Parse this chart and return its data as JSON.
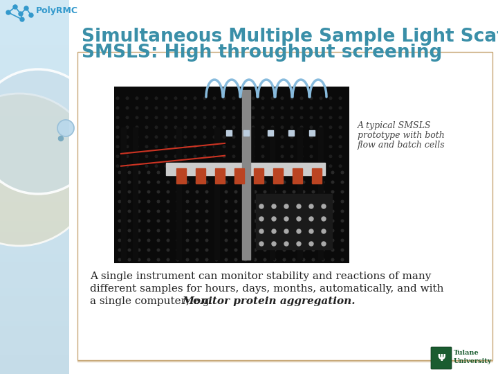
{
  "bg_color": "#ffffff",
  "left_panel_color_top": "#c5dce8",
  "left_panel_color_bottom": "#d8eaf2",
  "title_line1": "Simultaneous Multiple Sample Light Scattering",
  "title_line2": "SMSLS: High throughput screening",
  "title_color": "#3a8fa8",
  "body_line1": "A single instrument can monitor stability and reactions of many",
  "body_line2": "different samples for hours, days, months, automatically, and with",
  "body_line3": "a single computer; e.g. ",
  "body_bold_italic": "Monitor protein aggregation.",
  "body_color": "#222222",
  "caption_line1": "A typical SMSLS",
  "caption_line2": "prototype with both",
  "caption_line3": "flow and batch cells",
  "caption_color": "#444444",
  "border_color": "#c8a878",
  "polyrmc_color": "#3399cc",
  "tulane_green": "#1a5c30",
  "font_size_title": 19,
  "font_size_body": 11,
  "font_size_caption": 9,
  "font_size_polyrmc": 9,
  "circle_large_color": "#ddeef5",
  "circle_medium_color": "#e8dfc0",
  "circle_outline_color": "#ffffff",
  "small_circle_color": "#b8d4e4",
  "small_dot_color": "#88b8d0"
}
